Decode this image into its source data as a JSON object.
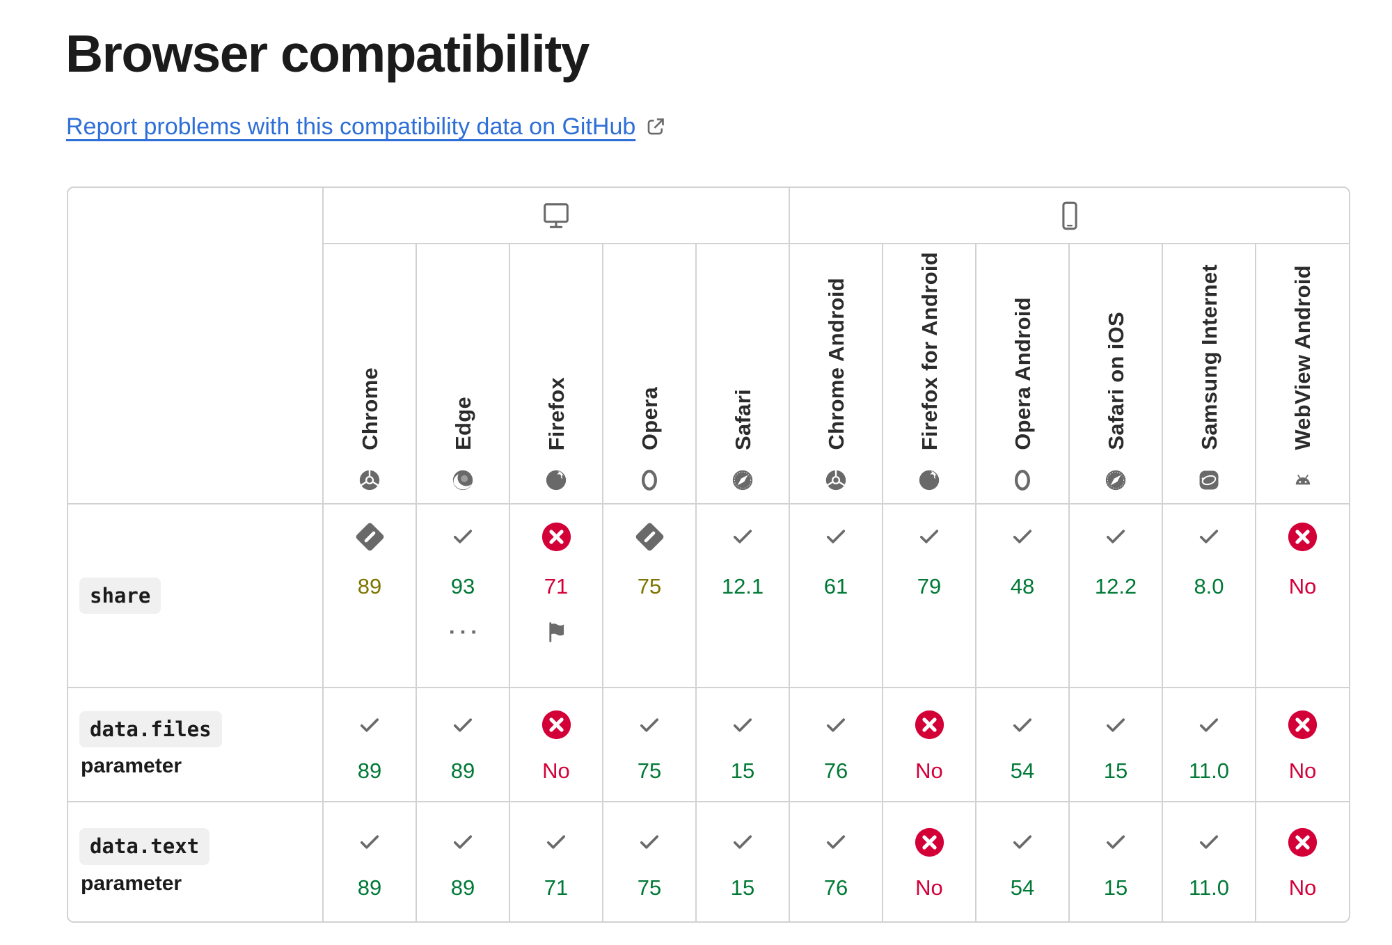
{
  "page": {
    "title": "Browser compatibility",
    "report_link": {
      "label": "Report problems with this compatibility data on GitHub",
      "icon": "external-link-icon"
    }
  },
  "colors": {
    "link_blue": "#2d6ed7",
    "supported_green": "#007936",
    "partial_olive": "#7e7400",
    "unsupported_red": "#d30038",
    "icon_gray": "#696969",
    "border_gray": "#d2d2d2",
    "code_pill_bg": "#f1f0f0",
    "text_dark": "#1b1b1b"
  },
  "table": {
    "groups": [
      {
        "name": "desktop",
        "icon": "desktop-icon",
        "span": 5
      },
      {
        "name": "mobile",
        "icon": "mobile-icon",
        "span": 6
      }
    ],
    "browsers": [
      {
        "label": "Chrome",
        "icon": "chrome-icon"
      },
      {
        "label": "Edge",
        "icon": "edge-icon"
      },
      {
        "label": "Firefox",
        "icon": "firefox-icon"
      },
      {
        "label": "Opera",
        "icon": "opera-icon"
      },
      {
        "label": "Safari",
        "icon": "safari-icon"
      },
      {
        "label": "Chrome Android",
        "icon": "chrome-icon"
      },
      {
        "label": "Firefox for Android",
        "icon": "firefox-icon"
      },
      {
        "label": "Opera Android",
        "icon": "opera-icon"
      },
      {
        "label": "Safari on iOS",
        "icon": "safari-icon"
      },
      {
        "label": "Samsung Internet",
        "icon": "samsung-internet-icon"
      },
      {
        "label": "WebView Android",
        "icon": "webview-android-icon"
      }
    ],
    "rows": [
      {
        "feature": "share",
        "sub": "",
        "cells": [
          {
            "icon": "partial-support-icon",
            "version": "89",
            "tone": "partial"
          },
          {
            "icon": "supported-icon",
            "version": "93",
            "tone": "yes",
            "footnote": "footnote-dots-icon"
          },
          {
            "icon": "unsupported-icon",
            "version": "71",
            "tone": "no",
            "footnote": "flag-icon"
          },
          {
            "icon": "partial-support-icon",
            "version": "75",
            "tone": "partial"
          },
          {
            "icon": "supported-icon",
            "version": "12.1",
            "tone": "yes"
          },
          {
            "icon": "supported-icon",
            "version": "61",
            "tone": "yes"
          },
          {
            "icon": "supported-icon",
            "version": "79",
            "tone": "yes"
          },
          {
            "icon": "supported-icon",
            "version": "48",
            "tone": "yes"
          },
          {
            "icon": "supported-icon",
            "version": "12.2",
            "tone": "yes"
          },
          {
            "icon": "supported-icon",
            "version": "8.0",
            "tone": "yes"
          },
          {
            "icon": "unsupported-icon",
            "version": "No",
            "tone": "no"
          }
        ]
      },
      {
        "feature": "data.files",
        "sub": "parameter",
        "cells": [
          {
            "icon": "supported-icon",
            "version": "89",
            "tone": "yes"
          },
          {
            "icon": "supported-icon",
            "version": "89",
            "tone": "yes"
          },
          {
            "icon": "unsupported-icon",
            "version": "No",
            "tone": "no"
          },
          {
            "icon": "supported-icon",
            "version": "75",
            "tone": "yes"
          },
          {
            "icon": "supported-icon",
            "version": "15",
            "tone": "yes"
          },
          {
            "icon": "supported-icon",
            "version": "76",
            "tone": "yes"
          },
          {
            "icon": "unsupported-icon",
            "version": "No",
            "tone": "no"
          },
          {
            "icon": "supported-icon",
            "version": "54",
            "tone": "yes"
          },
          {
            "icon": "supported-icon",
            "version": "15",
            "tone": "yes"
          },
          {
            "icon": "supported-icon",
            "version": "11.0",
            "tone": "yes"
          },
          {
            "icon": "unsupported-icon",
            "version": "No",
            "tone": "no"
          }
        ]
      },
      {
        "feature": "data.text",
        "sub": "parameter",
        "cells": [
          {
            "icon": "supported-icon",
            "version": "89",
            "tone": "yes"
          },
          {
            "icon": "supported-icon",
            "version": "89",
            "tone": "yes"
          },
          {
            "icon": "supported-icon",
            "version": "71",
            "tone": "yes"
          },
          {
            "icon": "supported-icon",
            "version": "75",
            "tone": "yes"
          },
          {
            "icon": "supported-icon",
            "version": "15",
            "tone": "yes"
          },
          {
            "icon": "supported-icon",
            "version": "76",
            "tone": "yes"
          },
          {
            "icon": "unsupported-icon",
            "version": "No",
            "tone": "no"
          },
          {
            "icon": "supported-icon",
            "version": "54",
            "tone": "yes"
          },
          {
            "icon": "supported-icon",
            "version": "15",
            "tone": "yes"
          },
          {
            "icon": "supported-icon",
            "version": "11.0",
            "tone": "yes"
          },
          {
            "icon": "unsupported-icon",
            "version": "No",
            "tone": "no"
          }
        ]
      }
    ]
  }
}
